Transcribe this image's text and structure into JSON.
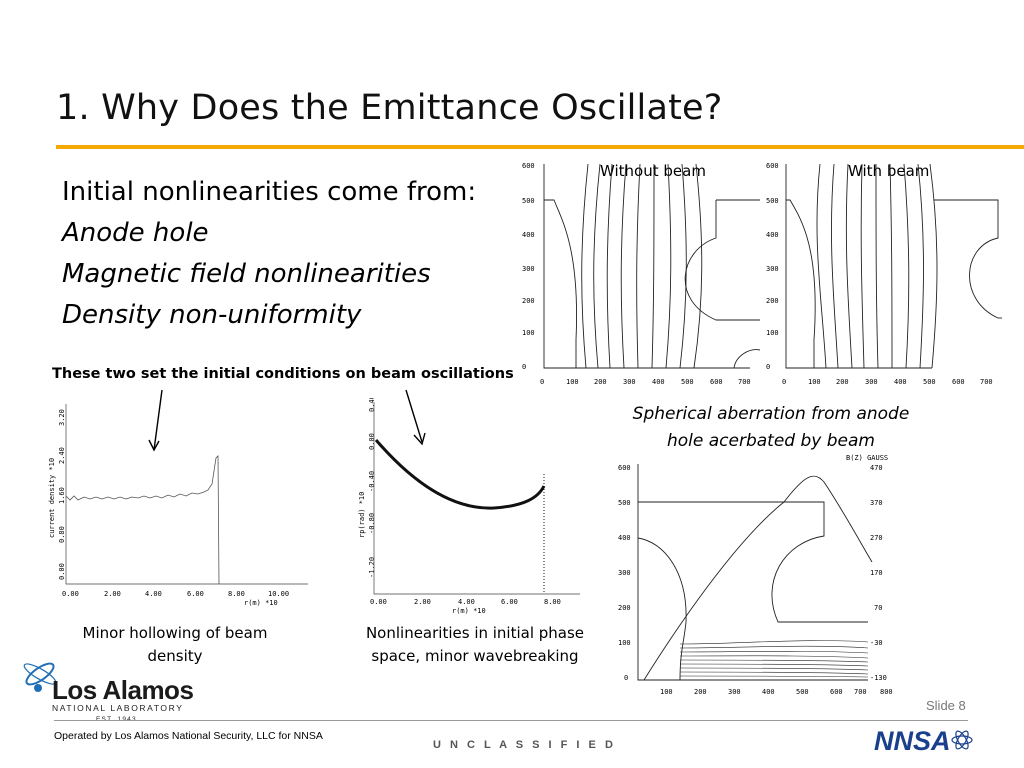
{
  "slide": {
    "title": "1.  Why Does the Emittance Oscillate?",
    "intro": "Initial nonlinearities come from:",
    "bullets": [
      "Anode hole",
      "Magnetic field nonlinearities",
      "Density non-uniformity"
    ],
    "note": "These two set the initial conditions on beam oscillations",
    "caption_without_beam": "Without beam",
    "caption_with_beam": "With beam",
    "spherical_caption": [
      "Spherical aberration from anode",
      "hole acerbated by beam"
    ],
    "caption_density": [
      "Minor hollowing of beam",
      "density"
    ],
    "caption_phase": [
      "Nonlinearities in initial phase",
      "space, minor wavebreaking"
    ],
    "slide_number": "Slide 8"
  },
  "plots": {
    "field_axis_y": [
      "600",
      "500",
      "400",
      "300",
      "200",
      "100",
      "0"
    ],
    "field_axis_x": [
      "0",
      "100",
      "200",
      "300",
      "400",
      "500",
      "600",
      "700"
    ],
    "density": {
      "xlabel": "r(m)  *10",
      "ylabel": "current density *10",
      "x_ticks": [
        "0.00",
        "2.00",
        "4.00",
        "6.00",
        "8.00",
        "10.00"
      ],
      "y_ticks": [
        "0.00",
        "0.80",
        "1.60",
        "2.40",
        "3.20"
      ]
    },
    "phase": {
      "xlabel": "r(m)  *10",
      "ylabel": "rp(rad) *10",
      "x_ticks": [
        "0.00",
        "2.00",
        "4.00",
        "6.00",
        "8.00"
      ],
      "y_ticks": [
        "0.40",
        "0.00",
        "-0.40",
        "-0.80",
        "-1.20"
      ]
    },
    "bz": {
      "header": "B(Z) GAUSS",
      "left_ticks": [
        "600",
        "500",
        "400",
        "300",
        "200",
        "100",
        "0"
      ],
      "right_ticks": [
        "470",
        "370",
        "270",
        "170",
        "70",
        "-30",
        "-130"
      ],
      "x_ticks": [
        "100",
        "200",
        "300",
        "400",
        "500",
        "600",
        "700",
        "800"
      ]
    }
  },
  "footer": {
    "org_name": "Los Alamos",
    "org_sub": "NATIONAL LABORATORY",
    "est": "EST. 1943",
    "operated_by": "Operated by Los Alamos National Security, LLC for NNSA",
    "classification": "U N C L A S S I F I E D",
    "nnsa_logo": "NNSA"
  }
}
